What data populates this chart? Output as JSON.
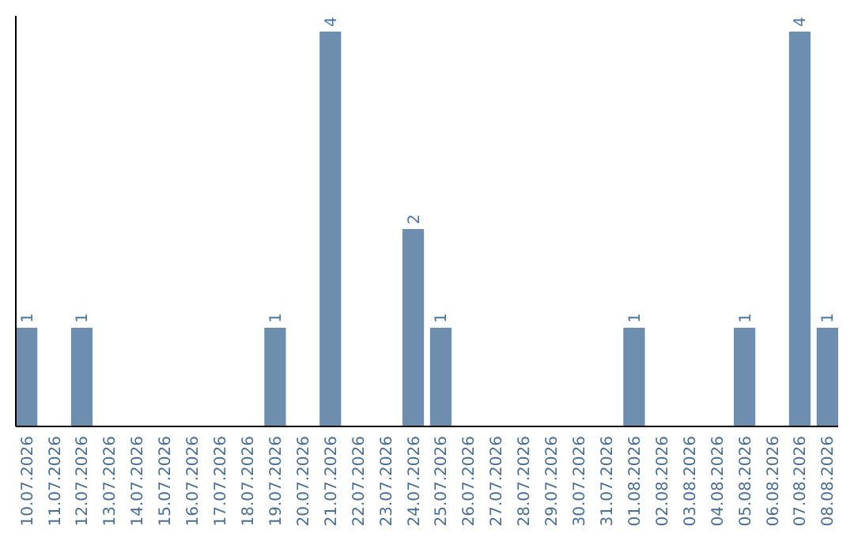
{
  "chart_data": {
    "type": "bar",
    "categories": [
      "10.07.2026",
      "11.07.2026",
      "12.07.2026",
      "13.07.2026",
      "14.07.2026",
      "15.07.2026",
      "16.07.2026",
      "17.07.2026",
      "18.07.2026",
      "19.07.2026",
      "20.07.2026",
      "21.07.2026",
      "22.07.2026",
      "23.07.2026",
      "24.07.2026",
      "25.07.2026",
      "26.07.2026",
      "27.07.2026",
      "28.07.2026",
      "29.07.2026",
      "30.07.2026",
      "31.07.2026",
      "01.08.2026",
      "02.08.2026",
      "03.08.2026",
      "04.08.2026",
      "05.08.2026",
      "06.08.2026",
      "07.08.2026",
      "08.08.2026"
    ],
    "values": [
      1,
      0,
      1,
      0,
      0,
      0,
      0,
      0,
      0,
      1,
      0,
      4,
      0,
      0,
      2,
      1,
      0,
      0,
      0,
      0,
      0,
      0,
      1,
      0,
      0,
      0,
      1,
      0,
      4,
      1
    ],
    "value_labels": [
      "1",
      null,
      "1",
      null,
      null,
      null,
      null,
      null,
      null,
      "1",
      null,
      "4",
      null,
      null,
      "2",
      "1",
      null,
      null,
      null,
      null,
      null,
      null,
      "1",
      null,
      null,
      null,
      "1",
      null,
      "4",
      "1"
    ],
    "color": "#6d8eae"
  }
}
